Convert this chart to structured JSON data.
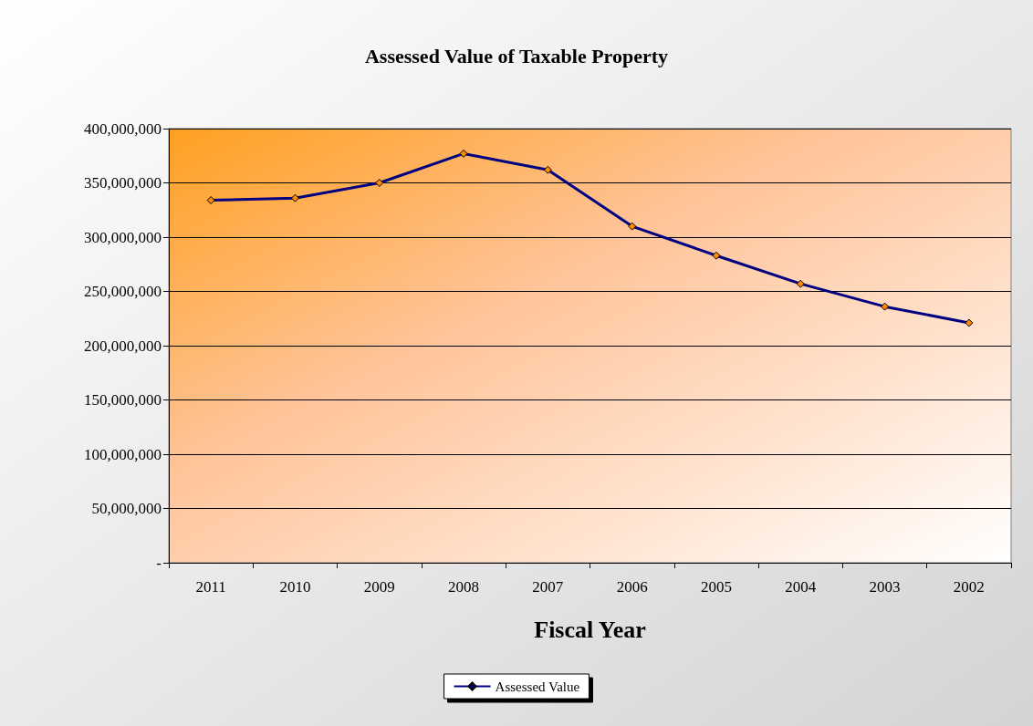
{
  "chart_data": {
    "type": "line",
    "title": "Assessed Value of Taxable Property",
    "xlabel": "Fiscal Year",
    "categories": [
      "2011",
      "2010",
      "2009",
      "2008",
      "2007",
      "2006",
      "2005",
      "2004",
      "2003",
      "2002"
    ],
    "series": [
      {
        "name": "Assessed Value",
        "color": "#000080",
        "colors": [
          "#ff8c00",
          "#ff8c00",
          "#ff8c00",
          "#ff8c00",
          "#ff8c00",
          "#ff8c00",
          "#ff8c00",
          "#ff8c00",
          "#ff8c00",
          "#ff8c00"
        ],
        "values": [
          334000000,
          336000000,
          350000000,
          377000000,
          362000000,
          310000000,
          283000000,
          257000000,
          236000000,
          221000000
        ]
      }
    ],
    "ylim": [
      0,
      400000000
    ],
    "yticks": [
      {
        "value": 0,
        "label": "-"
      },
      {
        "value": 50000000,
        "label": "50,000,000"
      },
      {
        "value": 100000000,
        "label": "100,000,000"
      },
      {
        "value": 150000000,
        "label": "150,000,000"
      },
      {
        "value": 200000000,
        "label": "200,000,000"
      },
      {
        "value": 250000000,
        "label": "250,000,000"
      },
      {
        "value": 300000000,
        "label": "300,000,000"
      },
      {
        "value": 350000000,
        "label": "350,000,000"
      },
      {
        "value": 400000000,
        "label": "400,000,000"
      }
    ],
    "grid": "y",
    "legend": "bottom",
    "marker": "diamond",
    "line_style": "solid"
  }
}
